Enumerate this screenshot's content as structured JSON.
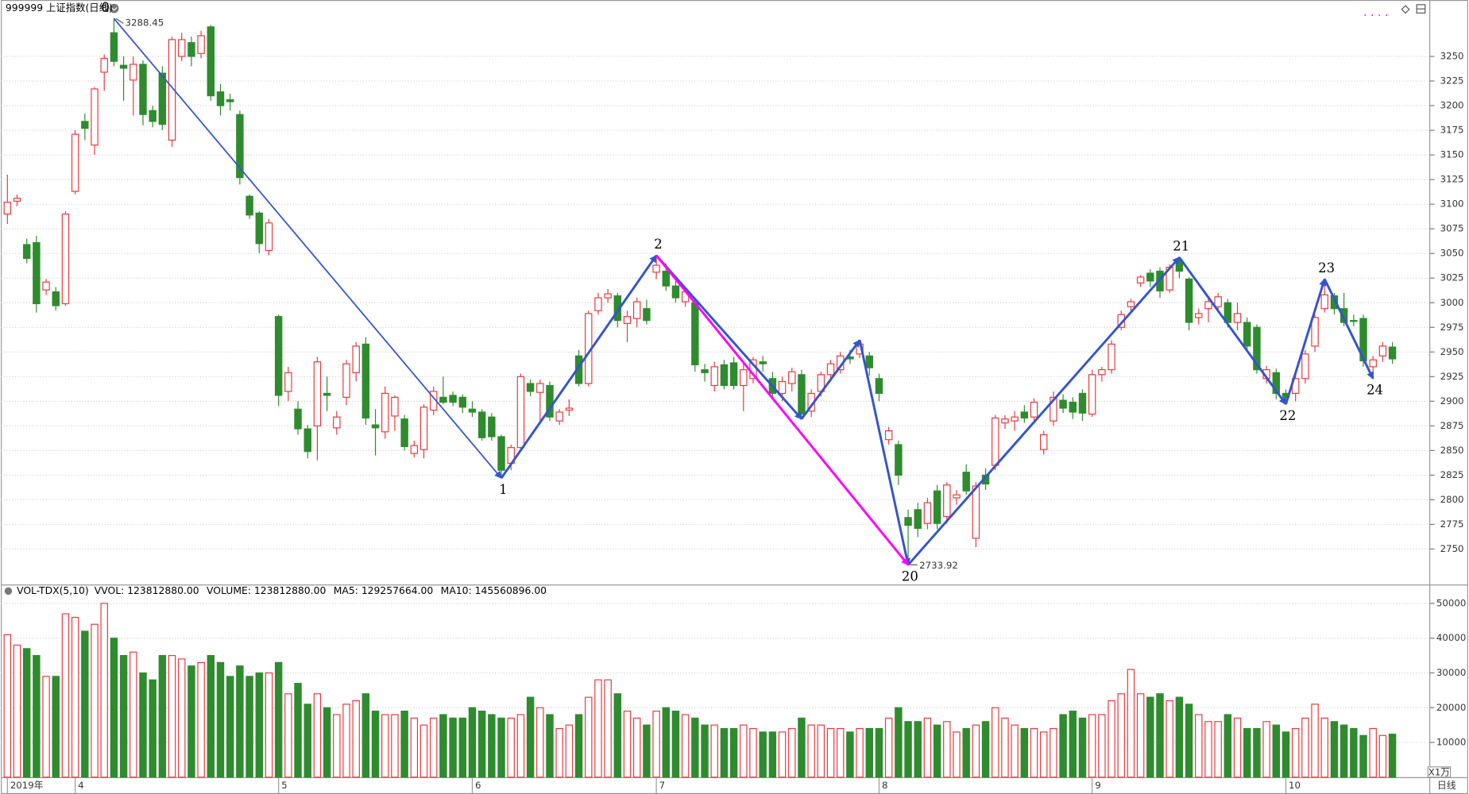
{
  "chart_data": [
    {
      "type": "candlestick",
      "title": "999999 上证指数(日线)",
      "period_label": "日线",
      "up_color": "#e8383d",
      "down_color": "#2e8b2e",
      "grid": true,
      "ylim": [
        2714,
        3293
      ],
      "yticks": [
        2750,
        2775,
        2800,
        2825,
        2850,
        2875,
        2900,
        2925,
        2950,
        2975,
        3000,
        3025,
        3050,
        3075,
        3100,
        3125,
        3150,
        3175,
        3200,
        3225,
        3250
      ],
      "x_labels": [
        {
          "index": 0,
          "label": "2019年"
        },
        {
          "index": 7,
          "label": "4"
        },
        {
          "index": 28,
          "label": "5"
        },
        {
          "index": 48,
          "label": "6"
        },
        {
          "index": 67,
          "label": "7"
        },
        {
          "index": 90,
          "label": "8"
        },
        {
          "index": 112,
          "label": "9"
        },
        {
          "index": 132,
          "label": "10"
        }
      ],
      "open": [
        3090,
        3103,
        3059,
        3061,
        3013,
        3011,
        2999,
        3113,
        3184,
        3160,
        3234,
        3274,
        3241,
        3226,
        3242,
        3195,
        3233,
        3165,
        3250,
        3264,
        3253,
        3280,
        3214,
        3206,
        3191,
        3108,
        3091,
        3053,
        2986,
        2910,
        2892,
        2872,
        2875,
        2908,
        2873,
        2904,
        2929,
        2958,
        2876,
        2869,
        2885,
        2882,
        2847,
        2851,
        2891,
        2904,
        2906,
        2904,
        2892,
        2889,
        2884,
        2864,
        2837,
        2853,
        2918,
        2909,
        2916,
        2880,
        2891,
        2946,
        2918,
        2992,
        3005,
        3007,
        2979,
        2984,
        2994,
        3031,
        3032,
        3017,
        3001,
        3000,
        2932,
        2916,
        2937,
        2939,
        2916,
        2923,
        2940,
        2923,
        2908,
        2918,
        2927,
        2890,
        2910,
        2927,
        2932,
        2945,
        2948,
        2946,
        2923,
        2861,
        2856,
        2782,
        2790,
        2776,
        2809,
        2783,
        2802,
        2828,
        2761,
        2825,
        2835,
        2878,
        2880,
        2889,
        2884,
        2851,
        2880,
        2901,
        2899,
        2908,
        2887,
        2927,
        2932,
        2975,
        2996,
        3020,
        3030,
        3032,
        3013,
        3043,
        3024,
        2985,
        2994,
        2996,
        3000,
        2980,
        2980,
        2975,
        2923,
        2929,
        2908,
        2908,
        2923,
        2956,
        2994,
        3007,
        2994,
        2982,
        2984,
        2935,
        2946,
        2955
      ],
      "high": [
        3130,
        3110,
        3065,
        3068,
        3024,
        3016,
        3093,
        3175,
        3192,
        3219,
        3252,
        3288.45,
        3250,
        3250,
        3246,
        3200,
        3240,
        3270,
        3274,
        3270,
        3276,
        3282,
        3222,
        3212,
        3195,
        3110,
        3093,
        3085,
        2988,
        2935,
        2900,
        2876,
        2945,
        2925,
        2890,
        2942,
        2960,
        2965,
        2892,
        2915,
        2906,
        2886,
        2860,
        2897,
        2915,
        2925,
        2910,
        2907,
        2900,
        2892,
        2888,
        2866,
        2856,
        2928,
        2922,
        2922,
        2920,
        2892,
        2902,
        2952,
        2992,
        3010,
        3014,
        3010,
        2992,
        3005,
        3003,
        3048,
        3040,
        3022,
        3015,
        3003,
        2938,
        2940,
        2942,
        2945,
        2940,
        2945,
        2946,
        2930,
        2925,
        2934,
        2932,
        2912,
        2930,
        2942,
        2950,
        2952,
        2962,
        2950,
        2928,
        2874,
        2860,
        2790,
        2797,
        2802,
        2815,
        2818,
        2810,
        2836,
        2818,
        2832,
        2886,
        2886,
        2890,
        2896,
        2903,
        2870,
        2910,
        2907,
        2904,
        2912,
        2932,
        2935,
        2962,
        2992,
        3004,
        3028,
        3034,
        3036,
        3039,
        3046,
        3026,
        2994,
        3004,
        3010,
        3004,
        3000,
        2985,
        2978,
        2936,
        2933,
        2912,
        2927,
        2952,
        2988,
        3024,
        3010,
        3010,
        2988,
        2988,
        2946,
        2960,
        2960
      ],
      "low": [
        3080,
        3098,
        3040,
        2990,
        3008,
        2992,
        2997,
        3110,
        3165,
        3150,
        3215,
        3240,
        3205,
        3190,
        3180,
        3178,
        3175,
        3158,
        3245,
        3240,
        3248,
        3205,
        3190,
        3195,
        3120,
        3085,
        3050,
        3048,
        2895,
        2900,
        2866,
        2842,
        2840,
        2890,
        2866,
        2896,
        2920,
        2876,
        2845,
        2862,
        2870,
        2850,
        2843,
        2842,
        2886,
        2897,
        2895,
        2888,
        2884,
        2860,
        2860,
        2822,
        2830,
        2850,
        2905,
        2880,
        2880,
        2876,
        2885,
        2915,
        2915,
        2988,
        3000,
        2975,
        2960,
        2975,
        2978,
        3024,
        3012,
        3000,
        2996,
        2930,
        2920,
        2910,
        2912,
        2912,
        2890,
        2918,
        2930,
        2902,
        2900,
        2910,
        2882,
        2884,
        2905,
        2920,
        2928,
        2938,
        2944,
        2926,
        2900,
        2856,
        2815,
        2733.92,
        2762,
        2770,
        2770,
        2776,
        2795,
        2805,
        2752,
        2810,
        2830,
        2872,
        2870,
        2878,
        2878,
        2846,
        2875,
        2888,
        2882,
        2880,
        2884,
        2920,
        2928,
        2972,
        2990,
        3016,
        3016,
        3005,
        3010,
        3025,
        2972,
        2978,
        2980,
        2990,
        2975,
        2972,
        2950,
        2928,
        2918,
        2902,
        2897,
        2900,
        2918,
        2950,
        2990,
        2988,
        2976,
        2976,
        2935,
        2923,
        2940,
        2938
      ],
      "close": [
        3102,
        3106,
        3045,
        2999,
        3021,
        2997,
        3090,
        3171,
        3177,
        3217,
        3248,
        3245,
        3238,
        3242,
        3191,
        3184,
        3181,
        3267,
        3267,
        3250,
        3271,
        3210,
        3200,
        3204,
        3127,
        3089,
        3060,
        3081,
        2906,
        2929,
        2872,
        2849,
        2940,
        2906,
        2884,
        2938,
        2956,
        2883,
        2873,
        2908,
        2904,
        2854,
        2855,
        2894,
        2910,
        2899,
        2899,
        2894,
        2889,
        2863,
        2864,
        2830,
        2853,
        2925,
        2910,
        2918,
        2884,
        2889,
        2893,
        2918,
        2989,
        3005,
        3009,
        2982,
        2986,
        3001,
        2982,
        3038,
        3017,
        3005,
        3011,
        2937,
        2929,
        2935,
        2916,
        2916,
        2932,
        2942,
        2938,
        2908,
        2920,
        2930,
        2887,
        2908,
        2927,
        2938,
        2946,
        2943,
        2958,
        2934,
        2908,
        2870,
        2825,
        2774,
        2771,
        2797,
        2776,
        2815,
        2805,
        2809,
        2814,
        2816,
        2883,
        2882,
        2884,
        2883,
        2899,
        2866,
        2904,
        2893,
        2889,
        2888,
        2927,
        2932,
        2958,
        2988,
        3001,
        3026,
        3022,
        3012,
        3036,
        3032,
        2980,
        2989,
        3001,
        3006,
        2980,
        2989,
        2956,
        2932,
        2932,
        2908,
        2904,
        2923,
        2948,
        2985,
        3008,
        2994,
        2980,
        2981,
        2941,
        2942,
        2956,
        2943
      ],
      "wave_color": "#3355cc",
      "waves": [
        {
          "label": "0",
          "index": 11,
          "price": 3288.45
        },
        {
          "label": "1",
          "index": 51,
          "price": 2822
        },
        {
          "label": "2",
          "index": 67,
          "price": 3048
        },
        {
          "label": null,
          "index": 82,
          "price": 2882
        },
        {
          "label": null,
          "index": 88,
          "price": 2962
        },
        {
          "label": "20",
          "index": 93,
          "price": 2733.92
        },
        {
          "label": "21",
          "index": 121,
          "price": 3046
        },
        {
          "label": "22",
          "index": 132,
          "price": 2897
        },
        {
          "label": "23",
          "index": 136,
          "price": 3024
        },
        {
          "label": "24",
          "index": 141,
          "price": 2923
        }
      ],
      "highlight": {
        "from": 2,
        "to": 5,
        "color": "#ff00ff"
      }
    },
    {
      "type": "bar",
      "title": "VOL-TDX(5,10)",
      "unit_label": "X1万",
      "legend": [
        {
          "text": "VVOL: 123812880.00",
          "color": "#000000"
        },
        {
          "text": "VOLUME: 123812880.00",
          "color": "#1470c8"
        },
        {
          "text": "MA5: 129257664.00",
          "color": "#1470c8"
        },
        {
          "text": "MA10: 145560896.00",
          "color": "#9a1b8e"
        }
      ],
      "ylim": [
        0,
        54900
      ],
      "yticks": [
        10000,
        20000,
        30000,
        40000,
        50000
      ],
      "grid": true,
      "values": [
        41000,
        38000,
        37000,
        35000,
        29000,
        29000,
        47000,
        46000,
        42000,
        44000,
        50000,
        40000,
        35000,
        36000,
        30000,
        28000,
        35000,
        35000,
        34000,
        32000,
        33000,
        35000,
        33000,
        29000,
        32000,
        29000,
        30000,
        30000,
        33000,
        24000,
        27000,
        21000,
        24000,
        20000,
        18000,
        21000,
        22000,
        24000,
        19000,
        18000,
        18000,
        19000,
        17000,
        15000,
        17000,
        18000,
        17000,
        17000,
        20000,
        19000,
        18000,
        17000,
        17000,
        18000,
        23000,
        20000,
        18000,
        14000,
        15000,
        18000,
        23000,
        28000,
        28000,
        24000,
        19000,
        17000,
        15000,
        19000,
        20000,
        19000,
        18000,
        17000,
        15000,
        15000,
        14000,
        14000,
        15000,
        14000,
        13000,
        13000,
        13000,
        14000,
        17000,
        15000,
        15000,
        14000,
        14000,
        13000,
        14000,
        14000,
        14000,
        17000,
        20000,
        16000,
        16000,
        17000,
        15000,
        16000,
        13000,
        14000,
        15000,
        16000,
        20000,
        17000,
        15000,
        14000,
        14000,
        13000,
        14000,
        18000,
        19000,
        17000,
        18000,
        18000,
        22000,
        24000,
        31000,
        24000,
        23000,
        24000,
        22000,
        23000,
        21000,
        18000,
        16000,
        16000,
        18000,
        17000,
        14000,
        14000,
        16000,
        15000,
        13000,
        14000,
        17000,
        21000,
        17000,
        16000,
        15000,
        14000,
        12000,
        14000,
        12000,
        12381.288
      ]
    }
  ]
}
